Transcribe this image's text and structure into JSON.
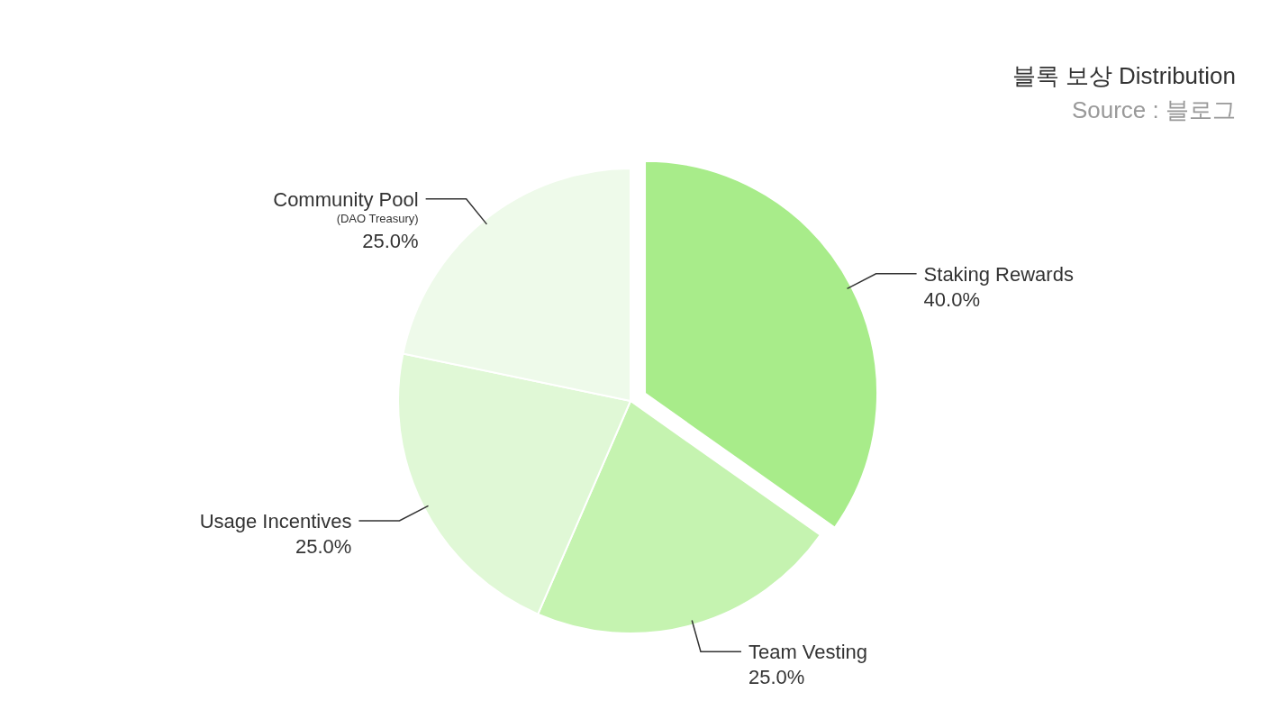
{
  "chart_data": {
    "type": "pie",
    "title": "블록 보상 Distribution",
    "subtitle": "Source : 블로그",
    "categories": [
      "Staking Rewards",
      "Team Vesting",
      "Usage Incentives",
      "Community Pool\n(DAO Treasury)"
    ],
    "values": [
      40,
      25,
      25,
      25
    ],
    "value_labels": [
      "40.0%",
      "25.0%",
      "25.0%",
      "25.0%"
    ],
    "colors": [
      "#a8ec8a",
      "#c5f3b0",
      "#e0f8d6",
      "#eefaea"
    ]
  }
}
